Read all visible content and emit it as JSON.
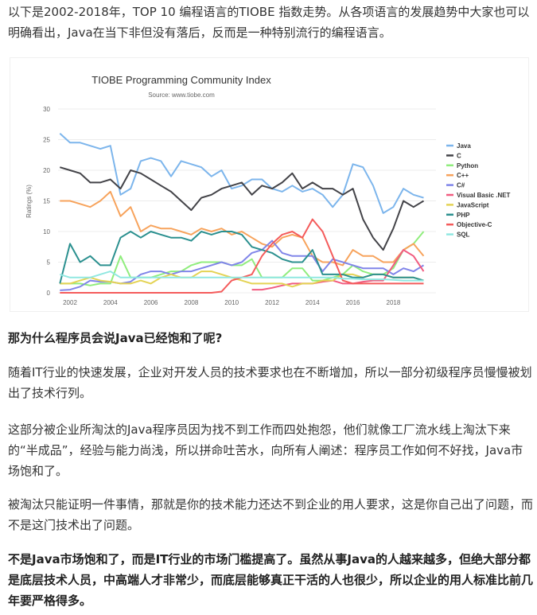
{
  "intro": "以下是2002-2018年，TOP 10 编程语言的TIOBE 指数走势。从各项语言的发展趋势中大家也可以明确看出，Java在当下非但没有落后，反而是一种特别流行的编程语言。",
  "heading": "那为什么程序员会说Java已经饱和了呢?",
  "para1": "随着IT行业的快速发展，企业对开发人员的技术要求也在不断增加，所以一部分初级程序员慢慢被划出了技术行列。",
  "para2": "这部分被企业所淘汰的Java程序员因为找不到工作而四处抱怨，他们就像工厂流水线上淘汰下来的“半成品”，经验与能力尚浅，所以拼命吐苦水，向所有人阐述：程序员工作如何不好找，Java市场饱和了。",
  "para3": "被淘汰只能证明一件事情，那就是你的技术能力还达不到企业的用人要求，这是你自己出了问题，而不是这门技术出了问题。",
  "para4": "不是Java市场饱和了，而是IT行业的市场门槛提高了。虽然从事Java的人越来越多，但绝大部分都是底层技术人员，中高端人才非常少，而底层能够真正干活的人也很少，所以企业的用人标准比前几年要严格得多。",
  "chart_data": {
    "type": "line",
    "title": "TIOBE Programming Community Index",
    "subtitle": "Source: www.tiobe.com",
    "ylabel": "Ratings (%)",
    "xlabel": "",
    "ylim": [
      0,
      30
    ],
    "yticks": [
      "0",
      "5",
      "10",
      "15",
      "20",
      "25",
      "30"
    ],
    "xticks": [
      "2002",
      "2004",
      "2006",
      "2008",
      "2010",
      "2012",
      "2014",
      "2016",
      "2018"
    ],
    "grid": true,
    "legend_position": "right",
    "x": [
      2001.5,
      2002,
      2002.5,
      2003,
      2003.5,
      2004,
      2004.5,
      2005,
      2005.5,
      2006,
      2006.5,
      2007,
      2007.5,
      2008,
      2008.5,
      2009,
      2009.5,
      2010,
      2010.5,
      2011,
      2011.5,
      2012,
      2012.5,
      2013,
      2013.5,
      2014,
      2014.5,
      2015,
      2015.5,
      2016,
      2016.5,
      2017,
      2017.5,
      2018,
      2018.5,
      2019,
      2019.5
    ],
    "series": [
      {
        "name": "Java",
        "color": "#7cb5ec",
        "values": [
          26,
          24.5,
          24.5,
          24,
          23.5,
          24,
          16,
          17,
          21.5,
          22,
          21.5,
          19,
          21.5,
          21,
          20.5,
          19,
          20,
          17,
          17.5,
          18.5,
          18.5,
          17,
          16.5,
          17.5,
          16.5,
          17,
          16,
          14,
          16,
          21,
          20.5,
          17.5,
          13,
          14,
          17,
          16,
          15.5
        ]
      },
      {
        "name": "C",
        "color": "#434348",
        "values": [
          20.5,
          20,
          19.5,
          18,
          18,
          18.5,
          17,
          20,
          19.5,
          18.5,
          17.5,
          16.5,
          15,
          13.5,
          15.5,
          16,
          17,
          17.5,
          18,
          16,
          17.5,
          17,
          18,
          19.5,
          17,
          18,
          17,
          17,
          16,
          17,
          12,
          9,
          7,
          10.5,
          15,
          14,
          15
        ]
      },
      {
        "name": "Python",
        "color": "#90ed7d",
        "values": [
          1.5,
          1.5,
          1.5,
          1.2,
          1.5,
          1.5,
          6,
          2.5,
          2.5,
          2.5,
          3,
          3.5,
          3.5,
          4.5,
          5,
          5,
          5,
          4.5,
          4.5,
          5.5,
          2.5,
          2.5,
          2.5,
          4,
          4,
          2,
          2,
          2.5,
          3,
          4.5,
          3.5,
          3,
          3,
          4,
          7,
          8,
          10
        ]
      },
      {
        "name": "C++",
        "color": "#f7a35c",
        "values": [
          15,
          15,
          14.5,
          14,
          15,
          16.5,
          12.5,
          14,
          10,
          11,
          10.5,
          10.5,
          10,
          9.5,
          10.5,
          10,
          10.5,
          9.5,
          10,
          9,
          8,
          7.5,
          9,
          9.5,
          9,
          6,
          5,
          5,
          4.5,
          7,
          6,
          6,
          5,
          5,
          7,
          8,
          6
        ]
      },
      {
        "name": "C#",
        "color": "#8085e9",
        "values": [
          0.4,
          0.5,
          1,
          2,
          1.8,
          1.8,
          1.5,
          1.8,
          3,
          3.5,
          3.5,
          3,
          3.5,
          3.5,
          4,
          4.5,
          5,
          4.5,
          5,
          6.5,
          7,
          8.5,
          6.5,
          6,
          6,
          6,
          3.5,
          5.5,
          5,
          4.5,
          4,
          4,
          4,
          3,
          4,
          3.5,
          4.5
        ]
      },
      {
        "name": "Visual Basic .NET",
        "color": "#f15c80",
        "values": [
          null,
          null,
          null,
          null,
          null,
          null,
          null,
          null,
          null,
          null,
          null,
          null,
          null,
          null,
          null,
          null,
          null,
          null,
          null,
          0.5,
          0.5,
          0.8,
          1.2,
          1.5,
          1.5,
          1.5,
          1.8,
          2,
          1.5,
          1.5,
          1.8,
          2,
          2,
          4.5,
          7,
          6,
          3.5
        ]
      },
      {
        "name": "JavaScript",
        "color": "#e4d354",
        "values": [
          1.5,
          1.5,
          2,
          2.5,
          2,
          1.8,
          1.5,
          1.5,
          2,
          1.5,
          2.5,
          3,
          2.5,
          2.5,
          3.5,
          3.5,
          3,
          2.5,
          2,
          1.5,
          1.5,
          1.5,
          1.5,
          1,
          1.5,
          1.5,
          2,
          2,
          3,
          3,
          2.5,
          3,
          3,
          2.5,
          2.5,
          2.5,
          2
        ]
      },
      {
        "name": "PHP",
        "color": "#2b908f",
        "values": [
          1.5,
          8,
          5,
          6,
          4.5,
          4.5,
          9,
          10,
          9,
          10,
          9.5,
          9,
          9,
          8.5,
          10,
          9.5,
          10,
          10,
          9.5,
          7.5,
          7,
          6.5,
          5.5,
          5,
          5,
          7,
          3,
          3,
          3,
          2.5,
          2.5,
          3,
          3,
          2.5,
          2.5,
          2.5,
          2
        ]
      },
      {
        "name": "Objective-C",
        "color": "#f45b5b",
        "values": [
          0,
          0,
          0,
          0,
          0,
          0,
          0,
          0,
          0,
          0,
          0,
          0,
          0,
          0,
          0,
          0,
          0.2,
          2,
          2.5,
          3,
          6,
          8,
          9.5,
          10,
          9,
          12,
          10,
          6,
          2,
          1.5,
          1.5,
          1.5,
          1.5,
          1.5,
          1.5,
          1.5,
          1.5
        ]
      },
      {
        "name": "SQL",
        "color": "#91e8e1",
        "values": [
          3,
          2.5,
          2.5,
          2.5,
          3,
          3.5,
          2.5,
          2.5,
          2.5,
          2.5,
          2.5,
          2.5,
          2.5,
          2.5,
          2.5,
          2.5,
          2.5,
          2.5,
          2.5,
          2.5,
          2.5,
          2.5,
          2.5,
          2.5,
          2.5,
          2.5,
          2.5,
          2.5,
          2.3,
          2.3,
          2.2,
          2.2,
          2.2,
          2.1,
          2,
          2,
          2
        ]
      }
    ]
  }
}
